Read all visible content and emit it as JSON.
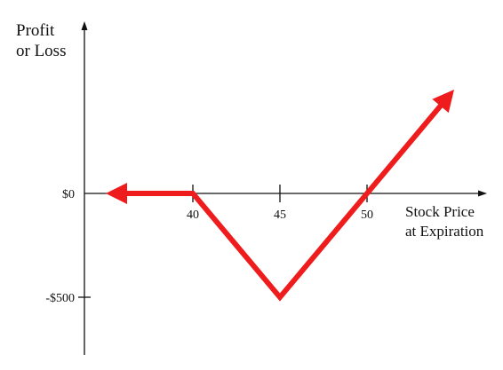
{
  "chart_data": {
    "type": "line",
    "ylabel_lines": [
      "Profit",
      "or Loss"
    ],
    "xlabel_lines": [
      "Stock Price",
      "at Expiration"
    ],
    "x_ticks": [
      40,
      45,
      50
    ],
    "y_ticks": [
      {
        "value": 0,
        "label": "$0"
      },
      {
        "value": -500,
        "label": "-$500"
      }
    ],
    "series": [
      {
        "x": [
          35,
          40,
          45,
          50,
          55
        ],
        "y": [
          0,
          0,
          -500,
          0,
          500
        ]
      }
    ],
    "arrow_ends": [
      "left",
      "right"
    ],
    "line_color": "#ee1c1c",
    "axis_color": "#111111",
    "grid": false
  }
}
